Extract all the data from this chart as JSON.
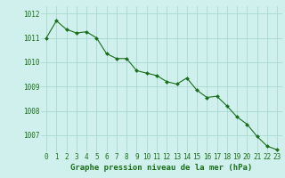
{
  "x": [
    0,
    1,
    2,
    3,
    4,
    5,
    6,
    7,
    8,
    9,
    10,
    11,
    12,
    13,
    14,
    15,
    16,
    17,
    18,
    19,
    20,
    21,
    22,
    23
  ],
  "y": [
    1011.0,
    1011.7,
    1011.35,
    1011.2,
    1011.25,
    1011.0,
    1010.35,
    1010.15,
    1010.15,
    1009.65,
    1009.55,
    1009.45,
    1009.2,
    1009.1,
    1009.35,
    1008.85,
    1008.55,
    1008.6,
    1008.2,
    1007.75,
    1007.45,
    1006.95,
    1006.55,
    1006.4
  ],
  "line_color": "#1a6e1a",
  "marker_color": "#1a6e1a",
  "bg_color": "#cff0ec",
  "grid_color": "#a8d8d0",
  "xlabel": "Graphe pression niveau de la mer (hPa)",
  "xlabel_color": "#1a6e1a",
  "tick_color": "#1a6e1a",
  "ylim": [
    1006.3,
    1012.3
  ],
  "yticks": [
    1007,
    1008,
    1009,
    1010,
    1011,
    1012
  ],
  "xticks": [
    0,
    1,
    2,
    3,
    4,
    5,
    6,
    7,
    8,
    9,
    10,
    11,
    12,
    13,
    14,
    15,
    16,
    17,
    18,
    19,
    20,
    21,
    22,
    23
  ],
  "xtick_labels": [
    "0",
    "1",
    "2",
    "3",
    "4",
    "5",
    "6",
    "7",
    "8",
    "9",
    "10",
    "11",
    "12",
    "13",
    "14",
    "15",
    "16",
    "17",
    "18",
    "19",
    "20",
    "21",
    "22",
    "23"
  ],
  "tick_fontsize": 5.5,
  "xlabel_fontsize": 6.5,
  "linewidth": 0.8,
  "markersize": 2.0
}
